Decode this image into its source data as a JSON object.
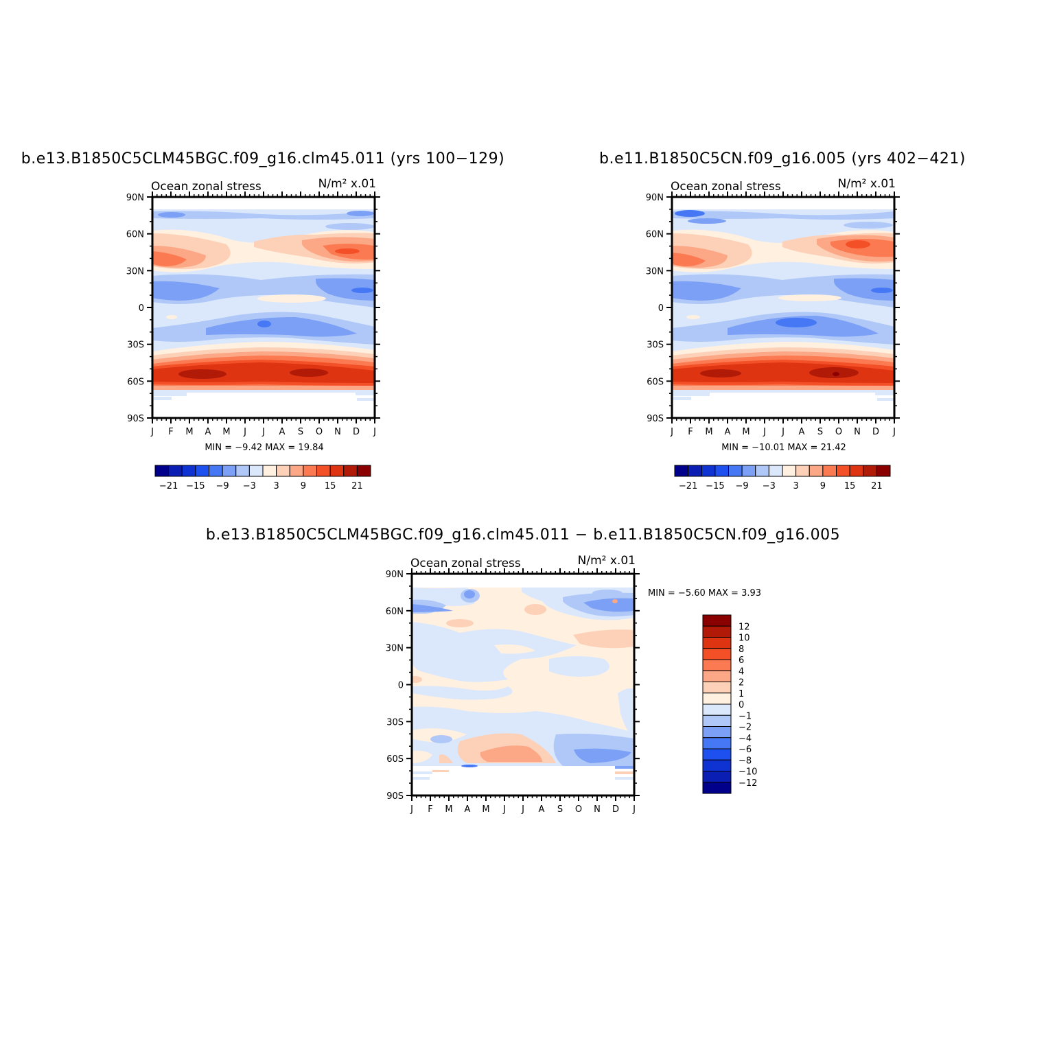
{
  "colors": {
    "levels": [
      "#00008b",
      "#0a1eb4",
      "#0f32d2",
      "#1e50f0",
      "#4678f5",
      "#7ba0f5",
      "#b0c8f8",
      "#dbe8fc",
      "#fff0e0",
      "#fdd0b8",
      "#fca887",
      "#fb7a52",
      "#f45028",
      "#de3412",
      "#b21a08",
      "#8a0000"
    ]
  },
  "chart_data": [
    {
      "type": "heatmap",
      "title": "b.e13.B1850C5CLM45BGC.f09_g16.clm45.011 (yrs 100−129)",
      "left_string": "Ocean zonal stress",
      "right_string": "N/m² x.01",
      "x_labels": [
        "J",
        "F",
        "M",
        "A",
        "M",
        "J",
        "J",
        "A",
        "S",
        "O",
        "N",
        "D",
        "J"
      ],
      "y_labels": [
        "90N",
        "60N",
        "30N",
        "0",
        "30S",
        "60S",
        "90S"
      ],
      "stats": "MIN =   −9.42  MAX =   19.84",
      "colorbar_labels": [
        "−21",
        "−15",
        "−9",
        "−3",
        "3",
        "9",
        "15",
        "21"
      ],
      "features": [
        {
          "lat": 40,
          "month": 1.0,
          "value": 10
        },
        {
          "lat": 40,
          "month": 10.5,
          "value": 14
        },
        {
          "lat": 45,
          "month": 6.5,
          "value": 4
        },
        {
          "lat": 10,
          "month": 0.5,
          "value": -8
        },
        {
          "lat": 10,
          "month": 10.8,
          "value": -8
        },
        {
          "lat": -10,
          "month": 5.0,
          "value": -6
        },
        {
          "lat": -55,
          "month": 3.0,
          "value": 19
        },
        {
          "lat": -55,
          "month": 8.5,
          "value": 19
        }
      ]
    },
    {
      "type": "heatmap",
      "title": "b.e11.B1850C5CN.f09_g16.005 (yrs 402−421)",
      "left_string": "Ocean zonal stress",
      "right_string": "N/m² x.01",
      "x_labels": [
        "J",
        "F",
        "M",
        "A",
        "M",
        "J",
        "J",
        "A",
        "S",
        "O",
        "N",
        "D",
        "J"
      ],
      "y_labels": [
        "90N",
        "60N",
        "30N",
        "0",
        "30S",
        "60S",
        "90S"
      ],
      "stats": "MIN =  −10.01  MAX =   21.42",
      "colorbar_labels": [
        "−21",
        "−15",
        "−9",
        "−3",
        "3",
        "9",
        "15",
        "21"
      ],
      "features": [
        {
          "lat": 40,
          "month": 1.0,
          "value": 10
        },
        {
          "lat": 48,
          "month": 10.0,
          "value": 16
        },
        {
          "lat": 10,
          "month": 0.5,
          "value": -8
        },
        {
          "lat": 10,
          "month": 11.0,
          "value": -8
        },
        {
          "lat": -12,
          "month": 6.0,
          "value": -9
        },
        {
          "lat": -55,
          "month": 2.5,
          "value": 19
        },
        {
          "lat": -55,
          "month": 9.0,
          "value": 21
        }
      ]
    },
    {
      "type": "heatmap",
      "title": "b.e13.B1850C5CLM45BGC.f09_g16.clm45.011 − b.e11.B1850C5CN.f09_g16.005",
      "left_string": "Ocean zonal stress",
      "right_string": "N/m² x.01",
      "x_labels": [
        "J",
        "F",
        "M",
        "A",
        "M",
        "J",
        "J",
        "A",
        "S",
        "O",
        "N",
        "D",
        "J"
      ],
      "y_labels": [
        "90N",
        "60N",
        "30N",
        "0",
        "30S",
        "60S",
        "90S"
      ],
      "stats": "MIN =   −5.60  MAX =    3.93",
      "colorbar_labels": [
        "12",
        "10",
        "8",
        "6",
        "4",
        "2",
        "1",
        "0",
        "−1",
        "−2",
        "−4",
        "−6",
        "−8",
        "−10",
        "−12"
      ],
      "features": [
        {
          "lat": 35,
          "month": 11.0,
          "value": 2
        },
        {
          "lat": -55,
          "month": 6.0,
          "value": 3
        },
        {
          "lat": -55,
          "month": 10.5,
          "value": -3
        },
        {
          "lat": 65,
          "month": 10.5,
          "value": -3
        },
        {
          "lat": 65,
          "month": 0.8,
          "value": -3
        }
      ]
    }
  ]
}
